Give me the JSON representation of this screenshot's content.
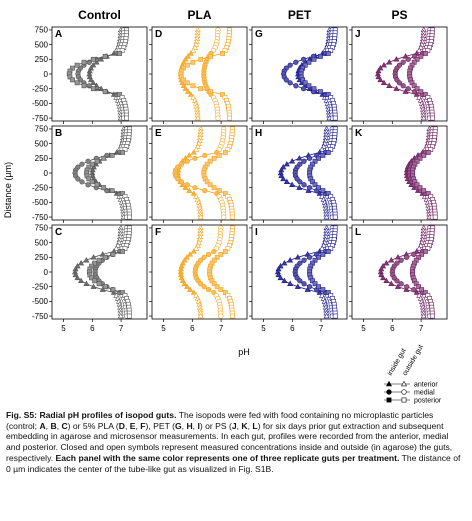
{
  "figure": {
    "column_titles": [
      "Control",
      "PLA",
      "PET",
      "PS"
    ],
    "xlabel": "pH",
    "ylabel": "Distance (µm)",
    "yticks": [
      "750",
      "500",
      "250",
      "0",
      "-250",
      "-500",
      "-750"
    ],
    "xticks": [
      "5",
      "6",
      "7"
    ],
    "panel_letters": [
      "A",
      "D",
      "G",
      "J",
      "B",
      "E",
      "H",
      "K",
      "C",
      "F",
      "I",
      "L"
    ],
    "colors": {
      "Control": "#555555",
      "PLA": "#f5a31c",
      "PET": "#1a1a8c",
      "PS": "#6b1a5e"
    },
    "legend": {
      "col_headers": [
        "inside gut",
        "outside gut"
      ],
      "rows": [
        "anterior",
        "medial",
        "posterior"
      ]
    }
  },
  "caption": {
    "label": "Fig. S5:",
    "title": "Radial pH profiles of isopod guts.",
    "text1": " The isopods were fed with food containing no microplastic particles (control; ",
    "A": "A",
    "B": "B",
    "C": "C",
    "text2": ") or 5% PLA (",
    "D": "D",
    "E": "E",
    "F": "F",
    "text3": "), PET (",
    "G": "G",
    "H": "H",
    "I": "I",
    "text4": ") or PS (",
    "J": "J",
    "K": "K",
    "L": "L",
    "text5": ") for six days prior gut extraction and subsequent embedding in agarose and microsensor measurements. In each gut, profiles were recorded from the anterior, medial and posterior. Closed and open symbols represent measured concentrations inside and outside (in agarose) the guts, respectively. ",
    "bold2": "Each panel with the same color represents one of three replicate guts per treatment.",
    "text6": " The distance of 0 µm indicates the center of the tube-like gut as visualized in Fig. S1B."
  },
  "chart_data": {
    "type": "line",
    "xlabel": "pH",
    "ylabel": "Distance (µm)",
    "xlim": [
      4.6,
      7.9
    ],
    "ylim": [
      -800,
      800
    ],
    "y": [
      750,
      700,
      650,
      600,
      550,
      500,
      450,
      400,
      350,
      300,
      250,
      200,
      150,
      100,
      50,
      0,
      -50,
      -100,
      -150,
      -200,
      -250,
      -300,
      -350,
      -400,
      -450,
      -500,
      -550,
      -600,
      -650,
      -700,
      -750
    ],
    "gut_half_width": 350,
    "panels": [
      {
        "letter": "A",
        "treatment": "Control",
        "series": [
          {
            "name": "anterior",
            "outside": 7.0,
            "center": 5.9
          },
          {
            "name": "medial",
            "outside": 7.1,
            "center": 5.5
          },
          {
            "name": "posterior",
            "outside": 7.2,
            "center": 5.2
          }
        ]
      },
      {
        "letter": "D",
        "treatment": "PLA",
        "series": [
          {
            "name": "anterior",
            "outside": 6.2,
            "center": 5.6
          },
          {
            "name": "medial",
            "outside": 6.9,
            "center": 6.4
          },
          {
            "name": "posterior",
            "outside": 7.3,
            "center": 5.6
          }
        ]
      },
      {
        "letter": "G",
        "treatment": "PET",
        "series": [
          {
            "name": "anterior",
            "outside": 7.3,
            "center": 6.2
          },
          {
            "name": "medial",
            "outside": 7.4,
            "center": 5.7
          },
          {
            "name": "posterior",
            "outside": 7.5,
            "center": 6.3
          }
        ]
      },
      {
        "letter": "J",
        "treatment": "PS",
        "series": [
          {
            "name": "anterior",
            "outside": 7.1,
            "center": 5.5
          },
          {
            "name": "medial",
            "outside": 7.3,
            "center": 6.1
          },
          {
            "name": "posterior",
            "outside": 7.4,
            "center": 6.6
          }
        ]
      },
      {
        "letter": "B",
        "treatment": "Control",
        "series": [
          {
            "name": "anterior",
            "outside": 7.1,
            "center": 6.0
          },
          {
            "name": "medial",
            "outside": 7.2,
            "center": 5.4
          },
          {
            "name": "posterior",
            "outside": 7.3,
            "center": 5.8
          }
        ]
      },
      {
        "letter": "E",
        "treatment": "PLA",
        "series": [
          {
            "name": "anterior",
            "outside": 6.3,
            "center": 5.5
          },
          {
            "name": "medial",
            "outside": 7.1,
            "center": 5.4
          },
          {
            "name": "posterior",
            "outside": 7.4,
            "center": 6.4
          }
        ]
      },
      {
        "letter": "H",
        "treatment": "PET",
        "series": [
          {
            "name": "anterior",
            "outside": 7.2,
            "center": 5.6
          },
          {
            "name": "medial",
            "outside": 7.4,
            "center": 6.1
          },
          {
            "name": "posterior",
            "outside": 7.5,
            "center": 6.6
          }
        ]
      },
      {
        "letter": "K",
        "treatment": "PS",
        "series": [
          {
            "name": "anterior",
            "outside": 7.3,
            "center": 6.5
          },
          {
            "name": "medial",
            "outside": 7.4,
            "center": 6.6
          },
          {
            "name": "posterior",
            "outside": 7.5,
            "center": 6.7
          }
        ]
      },
      {
        "letter": "C",
        "treatment": "Control",
        "series": [
          {
            "name": "anterior",
            "outside": 7.0,
            "center": 5.4
          },
          {
            "name": "medial",
            "outside": 7.2,
            "center": 6.1
          },
          {
            "name": "posterior",
            "outside": 7.3,
            "center": 5.9
          }
        ]
      },
      {
        "letter": "F",
        "treatment": "PLA",
        "series": [
          {
            "name": "anterior",
            "outside": 6.3,
            "center": 5.6
          },
          {
            "name": "medial",
            "outside": 7.0,
            "center": 6.1
          },
          {
            "name": "posterior",
            "outside": 7.4,
            "center": 6.6
          }
        ]
      },
      {
        "letter": "I",
        "treatment": "PET",
        "series": [
          {
            "name": "anterior",
            "outside": 7.2,
            "center": 5.5
          },
          {
            "name": "medial",
            "outside": 7.4,
            "center": 6.1
          },
          {
            "name": "posterior",
            "outside": 7.5,
            "center": 6.6
          }
        ]
      },
      {
        "letter": "L",
        "treatment": "PS",
        "series": [
          {
            "name": "anterior",
            "outside": 7.1,
            "center": 5.6
          },
          {
            "name": "medial",
            "outside": 7.3,
            "center": 6.0
          },
          {
            "name": "posterior",
            "outside": 7.4,
            "center": 6.7
          }
        ]
      }
    ]
  }
}
